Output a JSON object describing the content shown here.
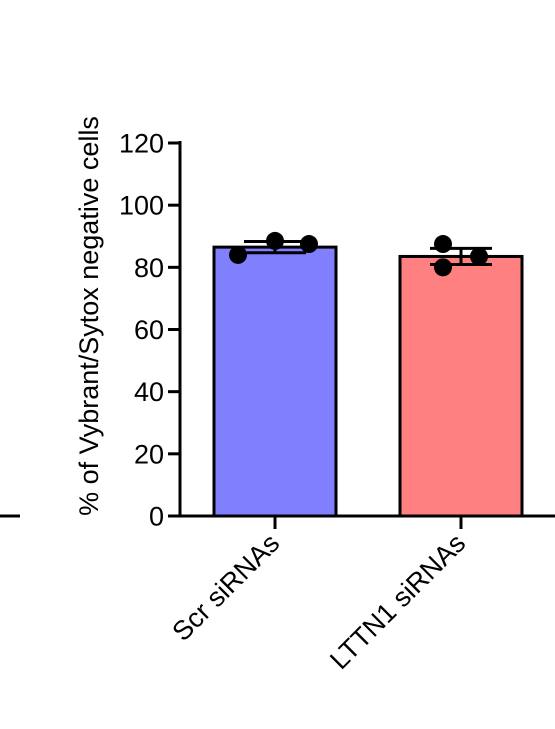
{
  "chart_data": {
    "type": "bar",
    "title": "",
    "xlabel": "",
    "ylabel": "% of Vybrant/Sytox negative cells",
    "ylim": [
      0,
      120
    ],
    "yticks": [
      0,
      20,
      40,
      60,
      80,
      100,
      120
    ],
    "categories": [
      "Scr siRNAs",
      "LTTN1 siRNAs"
    ],
    "values": [
      86.5,
      83.5
    ],
    "errors": [
      1.8,
      2.6
    ],
    "points": [
      [
        84,
        88.5,
        87.5
      ],
      [
        87.5,
        80,
        83.5
      ]
    ],
    "colors": [
      "#8080ff",
      "#ff8080"
    ],
    "grid": false,
    "legend": "none"
  }
}
